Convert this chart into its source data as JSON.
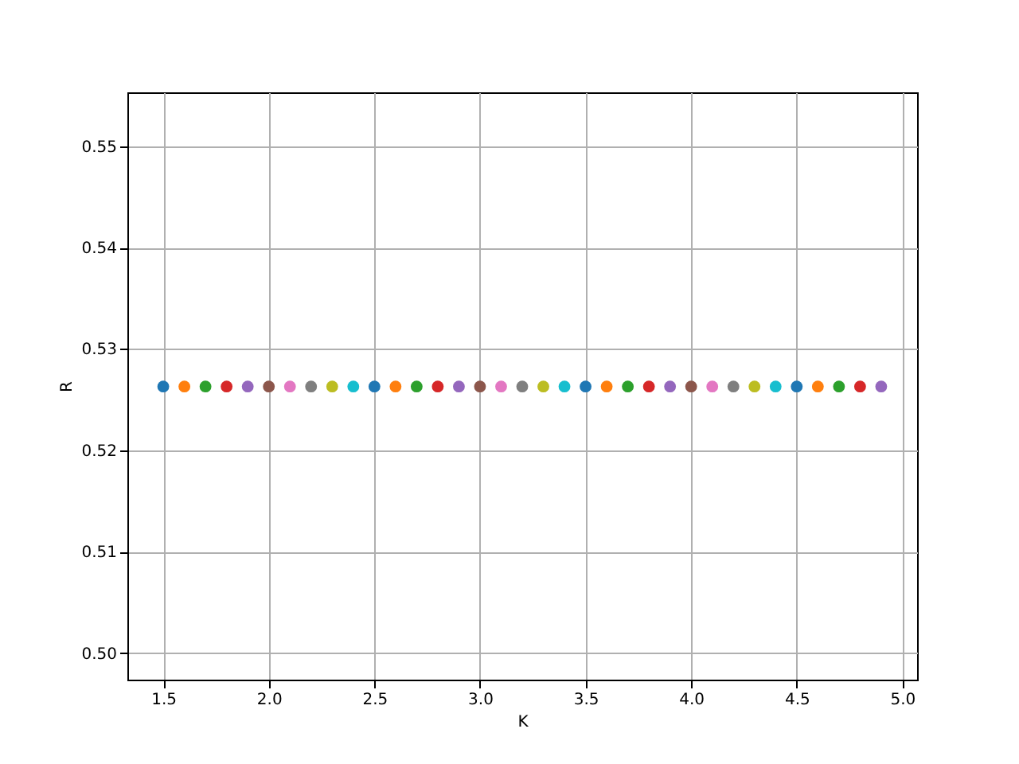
{
  "chart_data": {
    "type": "scatter",
    "xlabel": "K",
    "ylabel": "R",
    "x": [
      1.5,
      1.6,
      1.7,
      1.8,
      1.9,
      2.0,
      2.1,
      2.2,
      2.3,
      2.4,
      2.5,
      2.6,
      2.7,
      2.8,
      2.9,
      3.0,
      3.1,
      3.2,
      3.3,
      3.4,
      3.5,
      3.6,
      3.7,
      3.8,
      3.9,
      4.0,
      4.1,
      4.2,
      4.3,
      4.4,
      4.5,
      4.6,
      4.7,
      4.8,
      4.9
    ],
    "values": [
      0.5263,
      0.5263,
      0.5263,
      0.5263,
      0.5263,
      0.5263,
      0.5263,
      0.5263,
      0.5263,
      0.5263,
      0.5263,
      0.5263,
      0.5263,
      0.5263,
      0.5263,
      0.5263,
      0.5263,
      0.5263,
      0.5263,
      0.5263,
      0.5263,
      0.5263,
      0.5263,
      0.5263,
      0.5263,
      0.5263,
      0.5263,
      0.5263,
      0.5263,
      0.5263,
      0.5263,
      0.5263,
      0.5263,
      0.5263,
      0.5263
    ],
    "colors": [
      "#1f77b4",
      "#ff7f0e",
      "#2ca02c",
      "#d62728",
      "#9467bd",
      "#8c564b",
      "#e377c2",
      "#7f7f7f",
      "#bcbd22",
      "#17becf",
      "#1f77b4",
      "#ff7f0e",
      "#2ca02c",
      "#d62728",
      "#9467bd",
      "#8c564b",
      "#e377c2",
      "#7f7f7f",
      "#bcbd22",
      "#17becf",
      "#1f77b4",
      "#ff7f0e",
      "#2ca02c",
      "#d62728",
      "#9467bd",
      "#8c564b",
      "#e377c2",
      "#7f7f7f",
      "#bcbd22",
      "#17becf",
      "#1f77b4",
      "#ff7f0e",
      "#2ca02c",
      "#d62728",
      "#9467bd"
    ],
    "xlim": [
      1.33,
      5.07
    ],
    "xticks": [
      {
        "value": 1.5,
        "label": "1.5"
      },
      {
        "value": 2.0,
        "label": "2.0"
      },
      {
        "value": 2.5,
        "label": "2.5"
      },
      {
        "value": 3.0,
        "label": "3.0"
      },
      {
        "value": 3.5,
        "label": "3.5"
      },
      {
        "value": 4.0,
        "label": "4.0"
      },
      {
        "value": 4.5,
        "label": "4.5"
      },
      {
        "value": 5.0,
        "label": "5.0"
      }
    ],
    "ylim": [
      0.4974,
      0.5553
    ],
    "yticks": [
      {
        "value": 0.5,
        "label": "0.50"
      },
      {
        "value": 0.51,
        "label": "0.51"
      },
      {
        "value": 0.52,
        "label": "0.52"
      },
      {
        "value": 0.53,
        "label": "0.53"
      },
      {
        "value": 0.54,
        "label": "0.54"
      },
      {
        "value": 0.55,
        "label": "0.55"
      }
    ],
    "grid": true,
    "marker": "circle"
  }
}
